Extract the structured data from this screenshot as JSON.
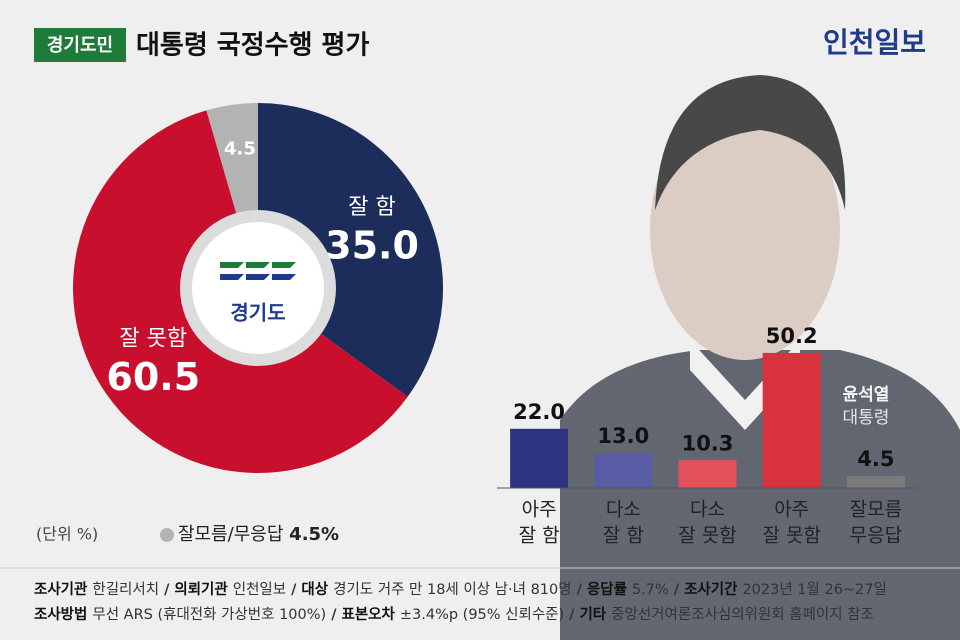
{
  "header": {
    "badge": "경기도민",
    "title": "대통령 국정수행 평가",
    "brand": "인천일보"
  },
  "chart_data": [
    {
      "type": "pie",
      "categories": [
        "잘 함",
        "잘 못함",
        "잘모름/무응답"
      ],
      "values": [
        35.0,
        60.5,
        4.5
      ],
      "value_labels": [
        "35.0",
        "60.5",
        "4.5"
      ],
      "colors": [
        "#1c2d5c",
        "#c8102e",
        "#b3b3b3"
      ],
      "center_label": "경기도",
      "unit_note": "(단위 %)",
      "legend_value_label": "4.5%"
    },
    {
      "type": "bar",
      "categories": [
        [
          "아주",
          "잘 함"
        ],
        [
          "다소",
          "잘 함"
        ],
        [
          "다소",
          "잘 못함"
        ],
        [
          "아주",
          "잘 못함"
        ],
        [
          "잘모름",
          "무응답"
        ]
      ],
      "values": [
        22.0,
        13.0,
        10.3,
        50.2,
        4.5
      ],
      "value_labels": [
        "22.0",
        "13.0",
        "10.3",
        "50.2",
        "4.5"
      ],
      "colors": [
        "#2f3480",
        "#5a5ca6",
        "#e4505a",
        "#d8323f",
        "#7a7a7a"
      ],
      "ylim": [
        0,
        55
      ]
    }
  ],
  "photo_caption": [
    "윤석열",
    "대통령"
  ],
  "footer": {
    "separator": "/",
    "lines": [
      [
        {
          "label": "조사기관",
          "text": "한길리서치"
        },
        {
          "label": "의뢰기관",
          "text": "인천일보"
        },
        {
          "label": "대상",
          "text": "경기도 거주 만 18세 이상 남·녀 810명"
        },
        {
          "label": "응답률",
          "text": "5.7%"
        },
        {
          "label": "조사기간",
          "text": "2023년 1월 26~27일"
        }
      ],
      [
        {
          "label": "조사방법",
          "text": "무선 ARS (휴대전화 가상번호 100%)"
        },
        {
          "label": "표본오차",
          "text": "±3.4%p (95% 신뢰수준)"
        },
        {
          "label": "기타",
          "text": "중앙선거여론조사심의위원회 홈페이지 참조"
        }
      ]
    ]
  }
}
